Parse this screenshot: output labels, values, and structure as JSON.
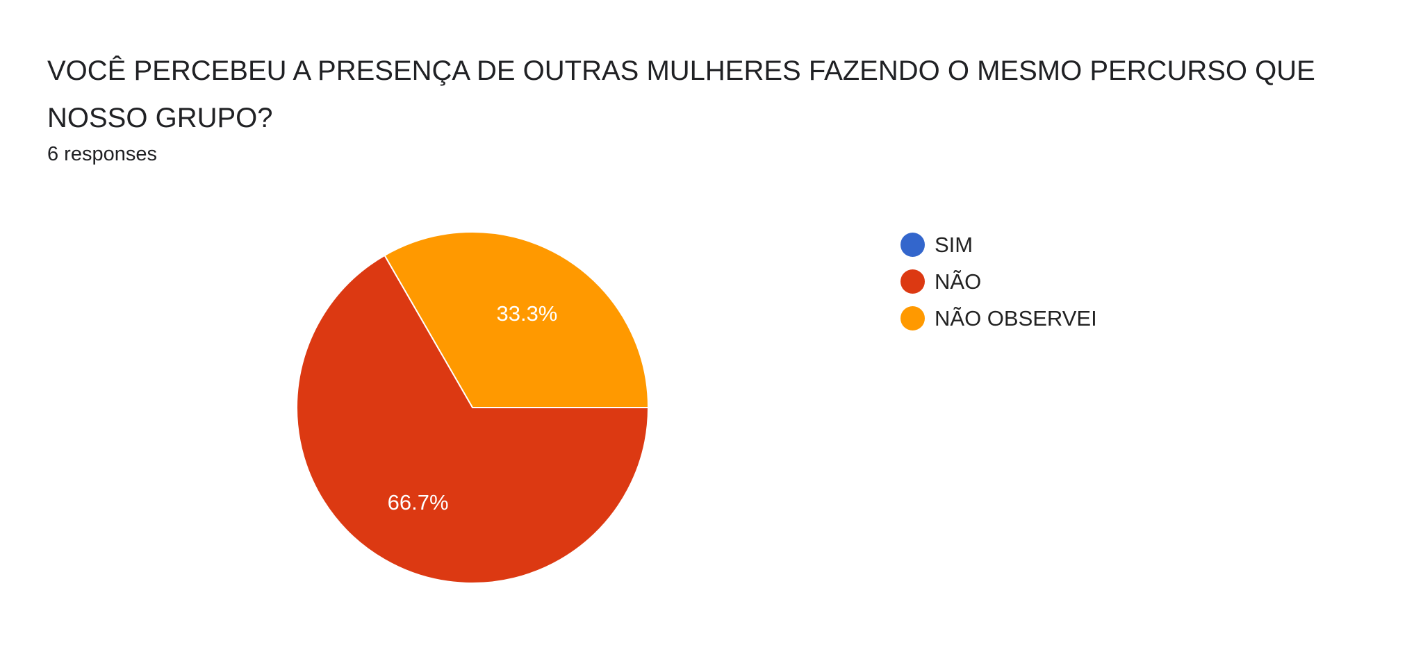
{
  "header": {
    "title": "VOCÊ PERCEBEU A PRESENÇA DE OUTRAS MULHERES FAZENDO O MESMO PERCURSO QUE NOSSO GRUPO?",
    "responses": "6 responses"
  },
  "chart_data": {
    "type": "pie",
    "title": "VOCÊ PERCEBEU A PRESENÇA DE OUTRAS MULHERES FAZENDO O MESMO PERCURSO QUE NOSSO GRUPO?",
    "categories": [
      "SIM",
      "NÃO",
      "NÃO OBSERVEI"
    ],
    "values": [
      0,
      4,
      2
    ],
    "percent_labels": [
      "0%",
      "66.7%",
      "33.3%"
    ],
    "colors": [
      "#3366cc",
      "#dc3912",
      "#ff9900"
    ],
    "legend_position": "right",
    "total": 6
  }
}
